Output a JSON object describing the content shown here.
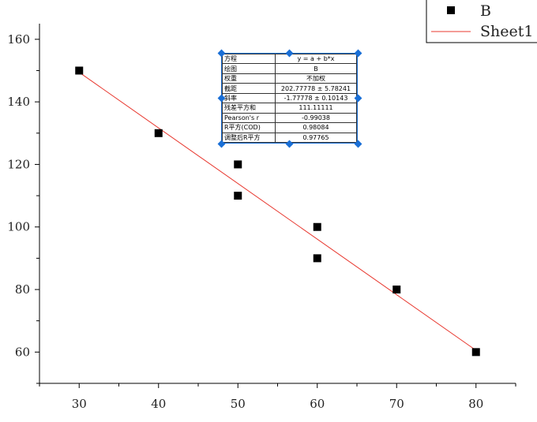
{
  "chart_data": {
    "type": "scatter",
    "x": [
      30,
      40,
      50,
      50,
      60,
      60,
      70,
      80
    ],
    "series": [
      {
        "name": "B",
        "values": [
          150,
          130,
          120,
          110,
          100,
          90,
          80,
          60
        ],
        "marker": "square",
        "color": "#000000"
      }
    ],
    "fit_line": {
      "name": "Sheet1",
      "intercept": 202.77778,
      "slope": -1.77778,
      "x_range": [
        30,
        80
      ],
      "color": "#e8382f"
    },
    "xlim": [
      25,
      85
    ],
    "ylim": [
      50,
      165
    ],
    "x_ticks": [
      30,
      40,
      50,
      60,
      70,
      80
    ],
    "y_ticks": [
      60,
      80,
      100,
      120,
      140,
      160
    ],
    "xlabel": "",
    "ylabel": "",
    "title": "",
    "legend_placement": "top-right",
    "grid": false
  },
  "stats_table": [
    {
      "key": "方程",
      "value": "y = a + b*x"
    },
    {
      "key": "绘图",
      "value": "B"
    },
    {
      "key": "权重",
      "value": "不加权"
    },
    {
      "key": "截距",
      "value": "202.77778 ± 5.78241"
    },
    {
      "key": "斜率",
      "value": "-1.77778 ± 0.10143"
    },
    {
      "key": "残差平方和",
      "value": "111.11111"
    },
    {
      "key": "Pearson's r",
      "value": "-0.99038"
    },
    {
      "key": "R平方(COD)",
      "value": "0.98084"
    },
    {
      "key": "调整后R平方",
      "value": "0.97765"
    }
  ]
}
